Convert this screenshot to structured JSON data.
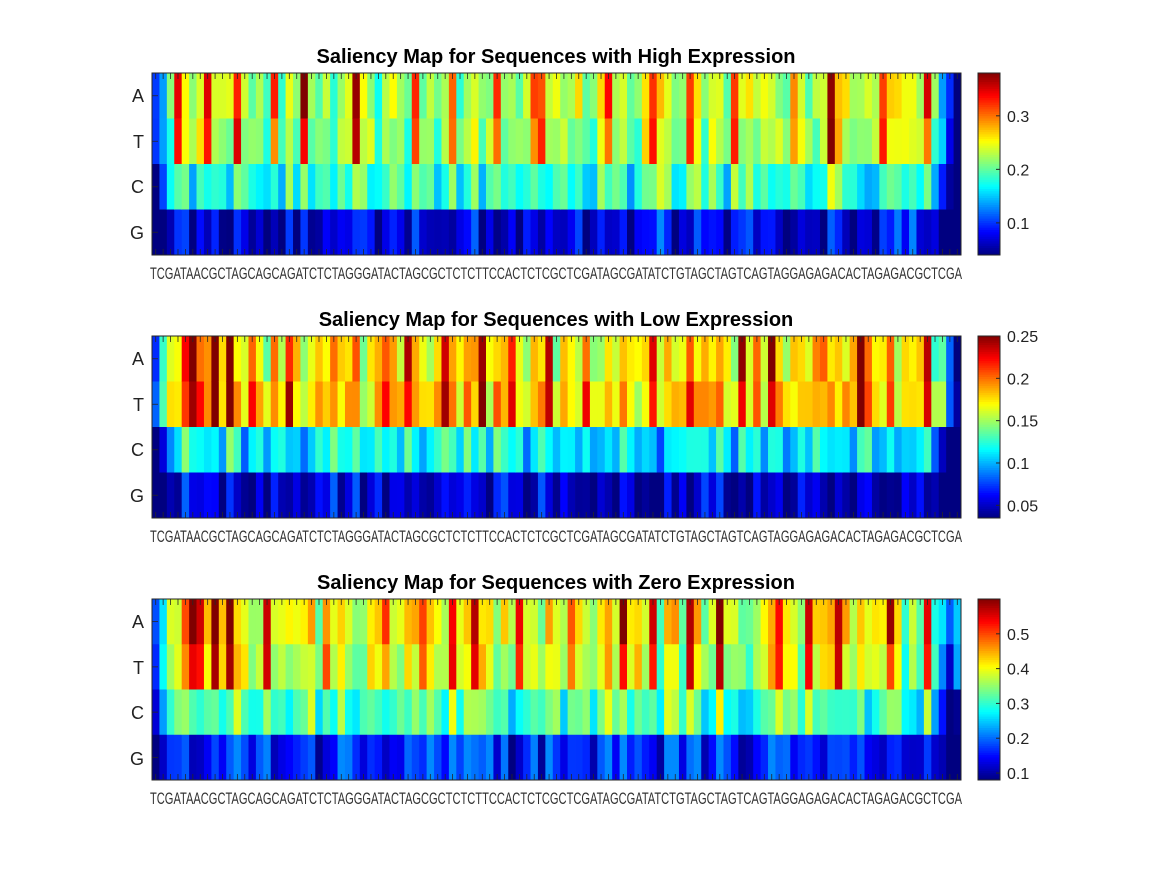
{
  "chart_data": [
    {
      "type": "heatmap",
      "title": "Saliency Map for Sequences with High Expression",
      "rows": [
        "A",
        "T",
        "C",
        "G"
      ],
      "colorbar": {
        "colormap": "jet",
        "range": [
          0.04,
          0.38
        ],
        "ticks": [
          "0.1",
          "0.2",
          "0.3"
        ],
        "tick_values": [
          0.1,
          0.2,
          0.3
        ]
      },
      "xtick_labels": "TCGATAACGCTAGCAGCAGATCTCTAGGGATACTAGCGCTCTCTTCCACTCTCGCTCGATAGCGATATCTGTAGCTAGTCAGTAGGAGAGACACTAGAGACGCTCGA",
      "hot_positions": [
        3,
        7,
        11,
        16,
        20,
        27,
        35,
        40,
        46,
        51,
        52,
        61,
        67,
        72,
        78,
        86,
        91,
        98,
        104,
        110,
        118
      ]
    },
    {
      "type": "heatmap",
      "title": "Saliency Map for Sequences with Low Expression",
      "rows": [
        "A",
        "T",
        "C",
        "G"
      ],
      "colorbar": {
        "colormap": "jet",
        "range": [
          0.035,
          0.25
        ],
        "ticks": [
          "0.05",
          "0.1",
          "0.15",
          "0.2",
          "0.25"
        ],
        "tick_values": [
          0.05,
          0.1,
          0.15,
          0.2,
          0.25
        ]
      },
      "xtick_labels": "TCGATAACGCTAGCAGCAGATCTCTAGGGATACTAGCGCTCTCTTCCACTCTCGCTCGATAGCGATATCTGTAGCTAGTCAGTAGGAGAGACACTAGAGACGCTCGA",
      "hot_positions": [
        5,
        8,
        10,
        13,
        18,
        31,
        34,
        39,
        44,
        48,
        53,
        58,
        67,
        72,
        79,
        83,
        95,
        99,
        104,
        106,
        110,
        113
      ]
    },
    {
      "type": "heatmap",
      "title": "Saliency Map for Sequences with Zero Expression",
      "rows": [
        "A",
        "T",
        "C",
        "G"
      ],
      "colorbar": {
        "colormap": "jet",
        "range": [
          0.08,
          0.6
        ],
        "ticks": [
          "0.1",
          "0.2",
          "0.3",
          "0.4",
          "0.5"
        ],
        "tick_values": [
          0.1,
          0.2,
          0.3,
          0.4,
          0.5
        ]
      },
      "xtick_labels": "TCGATAACGCTAGCAGCAGATCTCTAGGGATACTAGCGCTCTCTTCCACTCTCGCTCGATAGCGATATCTGTAGCTAGTCAGTAGGAGAGACACTAGAGACGCTCGA",
      "hot_positions": [
        5,
        6,
        8,
        10,
        15,
        23,
        31,
        36,
        40,
        43,
        49,
        56,
        63,
        67,
        72,
        76,
        84,
        88,
        92,
        99,
        104,
        108,
        112
      ]
    }
  ]
}
